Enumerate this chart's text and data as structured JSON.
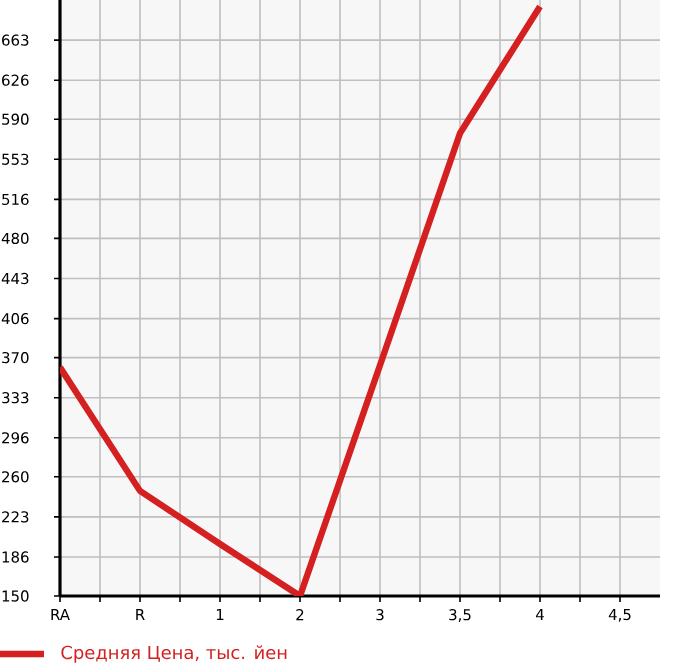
{
  "chart_data": {
    "type": "line",
    "categories": [
      "RA",
      "R",
      "1",
      "2",
      "3",
      "3,5",
      "4",
      "4,5"
    ],
    "series": [
      {
        "name": "Средняя Цена, тыс. йен",
        "color": "#d42020",
        "values": [
          361,
          247,
          198,
          150,
          363,
          577,
          694,
          null
        ]
      }
    ],
    "ylim": [
      150,
      700
    ],
    "yticks": [
      150,
      186,
      223,
      260,
      296,
      333,
      370,
      406,
      443,
      480,
      516,
      553,
      590,
      626,
      663
    ],
    "grid": true,
    "legend": "bottom left",
    "marker": "none",
    "line_style": "solid"
  }
}
